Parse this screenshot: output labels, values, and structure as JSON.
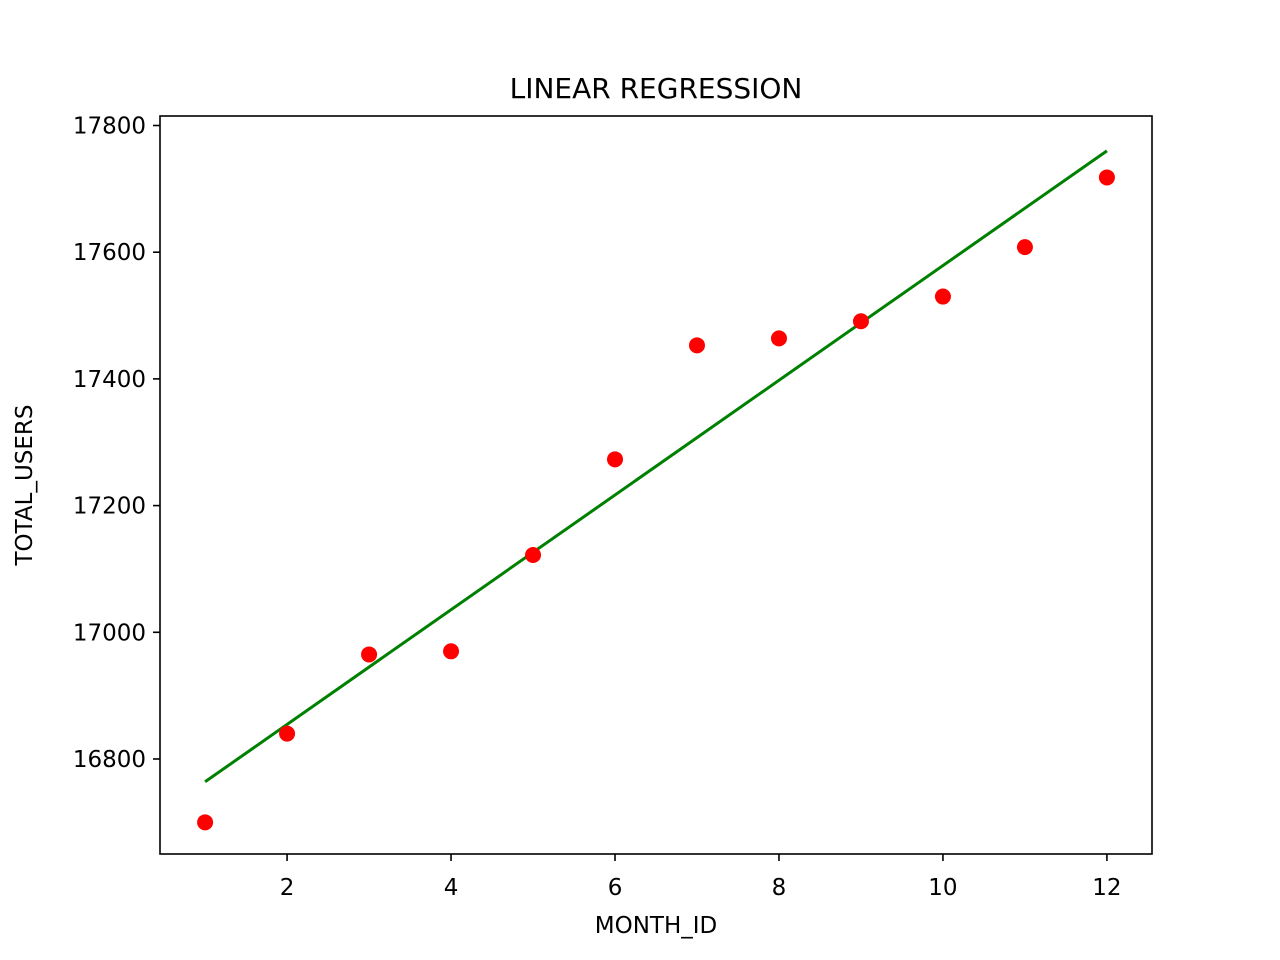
{
  "chart_data": {
    "type": "scatter",
    "title": "LINEAR REGRESSION",
    "xlabel": "MONTH_ID",
    "ylabel": "TOTAL_USERS",
    "xlim": [
      0.45,
      12.55
    ],
    "ylim": [
      16650,
      17815
    ],
    "xticks": [
      2,
      4,
      6,
      8,
      10,
      12
    ],
    "yticks": [
      16800,
      17000,
      17200,
      17400,
      17600,
      17800
    ],
    "grid": false,
    "series": [
      {
        "kind": "scatter",
        "color": "#ff0000",
        "points": [
          [
            1,
            16700
          ],
          [
            2,
            16840
          ],
          [
            3,
            16965
          ],
          [
            4,
            16970
          ],
          [
            5,
            17122
          ],
          [
            6,
            17273
          ],
          [
            7,
            17453
          ],
          [
            8,
            17464
          ],
          [
            9,
            17491
          ],
          [
            10,
            17530
          ],
          [
            11,
            17608
          ],
          [
            12,
            17718
          ]
        ]
      },
      {
        "kind": "line",
        "color": "#008000",
        "points": [
          [
            1,
            16764
          ],
          [
            12,
            17760
          ]
        ]
      }
    ]
  }
}
